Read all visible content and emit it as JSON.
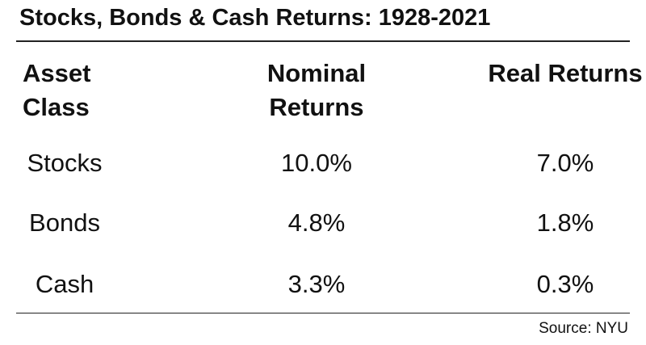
{
  "title": "Stocks, Bonds & Cash Returns: 1928-2021",
  "table": {
    "header": [
      "Asset Class",
      "Nominal Returns",
      "Real Returns"
    ],
    "rows": [
      [
        "Stocks",
        "10.0%",
        "7.0%"
      ],
      [
        "Bonds",
        "4.8%",
        "1.8%"
      ],
      [
        "Cash",
        "3.3%",
        "0.3%"
      ]
    ]
  },
  "source": "Source: NYU"
}
